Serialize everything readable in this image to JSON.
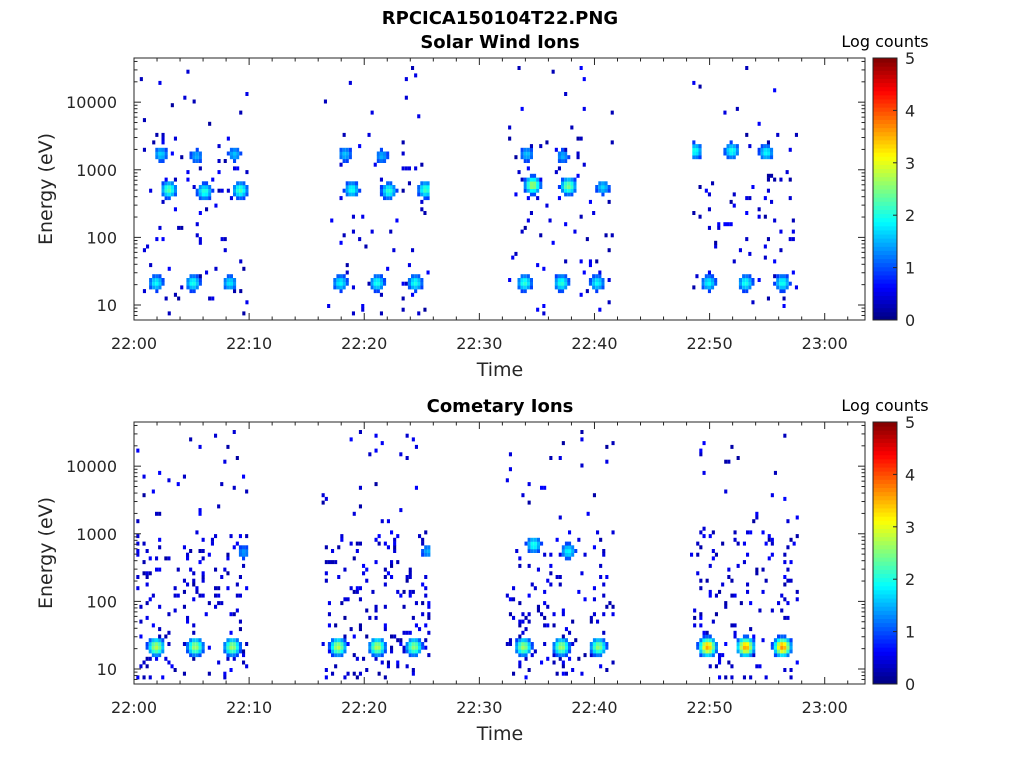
{
  "figure_title": "RPCICA150104T22.PNG",
  "chart_data": [
    {
      "type": "heatmap",
      "title": "Solar Wind Ions",
      "xlabel": "Time",
      "ylabel": "Energy (eV)",
      "colorbar_label": "Log counts",
      "colorbar_range": [
        0,
        5
      ],
      "colorbar_ticks": [
        "0",
        "1",
        "2",
        "3",
        "4",
        "5"
      ],
      "colormap": "jet",
      "x_ticks": [
        "22:00",
        "22:10",
        "22:20",
        "22:30",
        "22:40",
        "22:50",
        "23:00"
      ],
      "y_ticks": [
        "10",
        "100",
        "1000",
        "10000"
      ],
      "y_scale": "log",
      "ylim": [
        6,
        45000
      ],
      "xlim_minutes": [
        0,
        63.5
      ],
      "scan_windows_minutes": [
        [
          0.5,
          9.7
        ],
        [
          16.5,
          25.5
        ],
        [
          32.5,
          41.5
        ],
        [
          48.5,
          57.5
        ]
      ],
      "features": [
        {
          "t": 2.9,
          "e": 480,
          "z": 2.3
        },
        {
          "t": 6.0,
          "e": 450,
          "z": 2.1
        },
        {
          "t": 9.1,
          "e": 470,
          "z": 2.2
        },
        {
          "t": 2.2,
          "e": 1600,
          "z": 1.7
        },
        {
          "t": 5.3,
          "e": 1500,
          "z": 1.5
        },
        {
          "t": 8.6,
          "e": 1600,
          "z": 1.6
        },
        {
          "t": 1.8,
          "e": 20,
          "z": 1.9
        },
        {
          "t": 5.0,
          "e": 20,
          "z": 2.0
        },
        {
          "t": 8.2,
          "e": 20,
          "z": 1.8
        },
        {
          "t": 18.8,
          "e": 480,
          "z": 2.0
        },
        {
          "t": 22.0,
          "e": 460,
          "z": 2.1
        },
        {
          "t": 25.2,
          "e": 480,
          "z": 2.2
        },
        {
          "t": 18.2,
          "e": 1600,
          "z": 1.6
        },
        {
          "t": 21.4,
          "e": 1500,
          "z": 1.5
        },
        {
          "t": 17.8,
          "e": 20,
          "z": 1.9
        },
        {
          "t": 21.0,
          "e": 20,
          "z": 2.0
        },
        {
          "t": 24.3,
          "e": 20,
          "z": 2.0
        },
        {
          "t": 34.5,
          "e": 560,
          "z": 2.7
        },
        {
          "t": 37.6,
          "e": 540,
          "z": 2.5
        },
        {
          "t": 40.6,
          "e": 520,
          "z": 1.7
        },
        {
          "t": 34.0,
          "e": 1600,
          "z": 1.6
        },
        {
          "t": 37.1,
          "e": 1500,
          "z": 1.5
        },
        {
          "t": 33.8,
          "e": 20,
          "z": 2.1
        },
        {
          "t": 37.0,
          "e": 20,
          "z": 2.1
        },
        {
          "t": 40.1,
          "e": 20,
          "z": 1.9
        },
        {
          "t": 48.6,
          "e": 1800,
          "z": 2.0
        },
        {
          "t": 51.8,
          "e": 1800,
          "z": 2.0
        },
        {
          "t": 54.8,
          "e": 1700,
          "z": 1.9
        },
        {
          "t": 49.8,
          "e": 20,
          "z": 1.9
        },
        {
          "t": 53.0,
          "e": 20,
          "z": 2.0
        },
        {
          "t": 56.2,
          "e": 20,
          "z": 2.0
        }
      ]
    },
    {
      "type": "heatmap",
      "title": "Cometary Ions",
      "xlabel": "Time",
      "ylabel": "Energy (eV)",
      "colorbar_label": "Log counts",
      "colorbar_range": [
        0,
        5
      ],
      "colorbar_ticks": [
        "0",
        "1",
        "2",
        "3",
        "4",
        "5"
      ],
      "colormap": "jet",
      "x_ticks": [
        "22:00",
        "22:10",
        "22:20",
        "22:30",
        "22:40",
        "22:50",
        "23:00"
      ],
      "y_ticks": [
        "10",
        "100",
        "1000",
        "10000"
      ],
      "y_scale": "log",
      "ylim": [
        6,
        45000
      ],
      "xlim_minutes": [
        0,
        63.5
      ],
      "scan_windows_minutes": [
        [
          0.2,
          9.7
        ],
        [
          16.3,
          25.5
        ],
        [
          32.3,
          41.5
        ],
        [
          48.3,
          57.5
        ]
      ],
      "features": [
        {
          "t": 1.8,
          "e": 20,
          "z": 2.8
        },
        {
          "t": 5.2,
          "e": 20,
          "z": 2.7
        },
        {
          "t": 8.4,
          "e": 20,
          "z": 2.7
        },
        {
          "t": 17.6,
          "e": 20,
          "z": 2.8
        },
        {
          "t": 21.0,
          "e": 20,
          "z": 2.8
        },
        {
          "t": 24.2,
          "e": 20,
          "z": 2.6
        },
        {
          "t": 33.7,
          "e": 20,
          "z": 2.7
        },
        {
          "t": 37.0,
          "e": 20,
          "z": 2.7
        },
        {
          "t": 40.2,
          "e": 20,
          "z": 2.6
        },
        {
          "t": 49.7,
          "e": 20,
          "z": 3.6
        },
        {
          "t": 53.0,
          "e": 20,
          "z": 3.6
        },
        {
          "t": 56.2,
          "e": 20,
          "z": 3.7
        },
        {
          "t": 34.6,
          "e": 650,
          "z": 2.0
        },
        {
          "t": 37.6,
          "e": 520,
          "z": 1.9
        },
        {
          "t": 25.4,
          "e": 520,
          "z": 1.5
        },
        {
          "t": 9.4,
          "e": 500,
          "z": 1.4
        }
      ]
    }
  ]
}
